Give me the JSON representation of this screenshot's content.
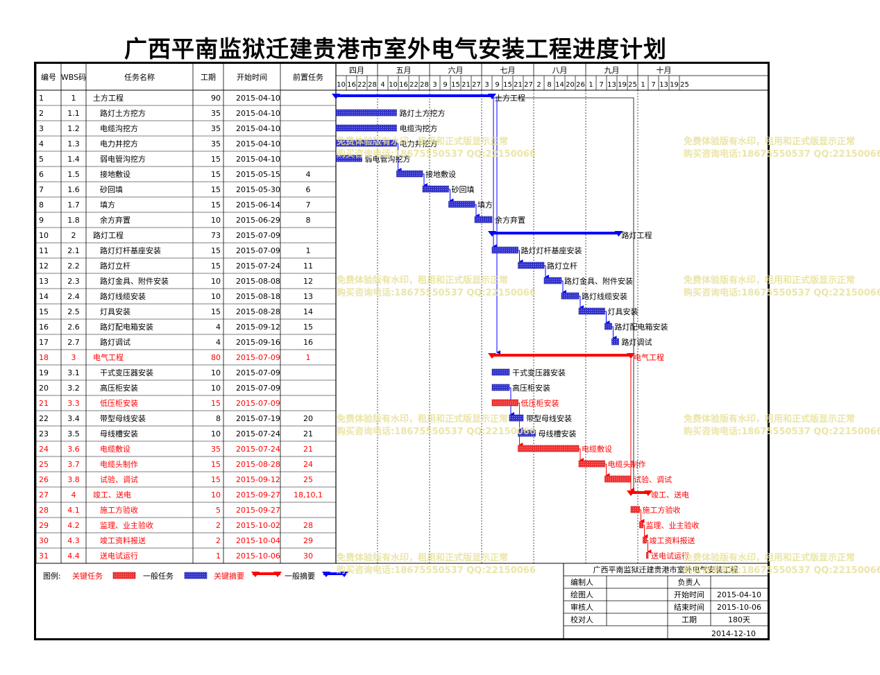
{
  "title": "广西平南监狱迁建贵港市室外电气安装工程进度计划",
  "colors": {
    "critical": "#ff0000",
    "normal": "#3333cc",
    "grid": "#000000",
    "link": "#0000ff"
  },
  "columns": {
    "id": "编号",
    "wbs": "WBS码",
    "name": "任务名称",
    "duration": "工期",
    "start": "开始时间",
    "pred": "前置任务"
  },
  "timeline": {
    "months": [
      {
        "label": "四月",
        "start": "2015-04-10",
        "end": "2015-05-04"
      },
      {
        "label": "五月",
        "start": "2015-05-04",
        "end": "2015-06-03"
      },
      {
        "label": "六月",
        "start": "2015-06-03",
        "end": "2015-07-03"
      },
      {
        "label": "七月",
        "start": "2015-07-03",
        "end": "2015-08-02"
      },
      {
        "label": "八月",
        "start": "2015-08-02",
        "end": "2015-09-01"
      },
      {
        "label": "九月",
        "start": "2015-09-01",
        "end": "2015-10-01"
      },
      {
        "label": "十月",
        "start": "2015-10-01",
        "end": "2015-10-31"
      }
    ],
    "ticks": [
      "10",
      "16",
      "22",
      "28",
      "4",
      "10",
      "16",
      "22",
      "28",
      "3",
      "9",
      "15",
      "21",
      "27",
      "3",
      "9",
      "15",
      "21",
      "27",
      "2",
      "8",
      "14",
      "20",
      "26",
      "1",
      "7",
      "13",
      "19",
      "25",
      "1",
      "7",
      "13",
      "19",
      "25"
    ],
    "tick_start": "2015-04-10",
    "tick_step_days": 6
  },
  "chart_data": {
    "type": "gantt",
    "tasks": [
      {
        "id": "1",
        "wbs": "1",
        "name": "土方工程",
        "duration": "90",
        "start": "2015-04-10",
        "pred": "",
        "level": 0,
        "summary": true,
        "critical": false
      },
      {
        "id": "2",
        "wbs": "1.1",
        "name": "路灯土方挖方",
        "duration": "35",
        "start": "2015-04-10",
        "pred": "",
        "level": 1,
        "summary": false,
        "critical": false
      },
      {
        "id": "3",
        "wbs": "1.2",
        "name": "电缆沟挖方",
        "duration": "35",
        "start": "2015-04-10",
        "pred": "",
        "level": 1,
        "summary": false,
        "critical": false
      },
      {
        "id": "4",
        "wbs": "1.3",
        "name": "电力井挖方",
        "duration": "35",
        "start": "2015-04-10",
        "pred": "",
        "level": 1,
        "summary": false,
        "critical": false
      },
      {
        "id": "5",
        "wbs": "1.4",
        "name": "弱电管沟挖方",
        "duration": "15",
        "start": "2015-04-10",
        "pred": "",
        "level": 1,
        "summary": false,
        "critical": false
      },
      {
        "id": "6",
        "wbs": "1.5",
        "name": "接地敷设",
        "duration": "15",
        "start": "2015-05-15",
        "pred": "4",
        "level": 1,
        "summary": false,
        "critical": false
      },
      {
        "id": "7",
        "wbs": "1.6",
        "name": "砂回填",
        "duration": "15",
        "start": "2015-05-30",
        "pred": "6",
        "level": 1,
        "summary": false,
        "critical": false
      },
      {
        "id": "8",
        "wbs": "1.7",
        "name": "填方",
        "duration": "15",
        "start": "2015-06-14",
        "pred": "7",
        "level": 1,
        "summary": false,
        "critical": false
      },
      {
        "id": "9",
        "wbs": "1.8",
        "name": "余方弃置",
        "duration": "10",
        "start": "2015-06-29",
        "pred": "8",
        "level": 1,
        "summary": false,
        "critical": false
      },
      {
        "id": "10",
        "wbs": "2",
        "name": "路灯工程",
        "duration": "73",
        "start": "2015-07-09",
        "pred": "",
        "level": 0,
        "summary": true,
        "critical": false
      },
      {
        "id": "11",
        "wbs": "2.1",
        "name": "路灯灯杆基座安装",
        "duration": "15",
        "start": "2015-07-09",
        "pred": "1",
        "level": 1,
        "summary": false,
        "critical": false
      },
      {
        "id": "12",
        "wbs": "2.2",
        "name": "路灯立杆",
        "duration": "15",
        "start": "2015-07-24",
        "pred": "11",
        "level": 1,
        "summary": false,
        "critical": false
      },
      {
        "id": "13",
        "wbs": "2.3",
        "name": "路灯金具、附件安装",
        "duration": "10",
        "start": "2015-08-08",
        "pred": "12",
        "level": 1,
        "summary": false,
        "critical": false
      },
      {
        "id": "14",
        "wbs": "2.4",
        "name": "路灯线缆安装",
        "duration": "10",
        "start": "2015-08-18",
        "pred": "13",
        "level": 1,
        "summary": false,
        "critical": false
      },
      {
        "id": "15",
        "wbs": "2.5",
        "name": "灯具安装",
        "duration": "15",
        "start": "2015-08-28",
        "pred": "14",
        "level": 1,
        "summary": false,
        "critical": false
      },
      {
        "id": "16",
        "wbs": "2.6",
        "name": "路灯配电箱安装",
        "duration": "4",
        "start": "2015-09-12",
        "pred": "15",
        "level": 1,
        "summary": false,
        "critical": false
      },
      {
        "id": "17",
        "wbs": "2.7",
        "name": "路灯调试",
        "duration": "4",
        "start": "2015-09-16",
        "pred": "16",
        "level": 1,
        "summary": false,
        "critical": false
      },
      {
        "id": "18",
        "wbs": "3",
        "name": "电气工程",
        "duration": "80",
        "start": "2015-07-09",
        "pred": "1",
        "level": 0,
        "summary": true,
        "critical": true
      },
      {
        "id": "19",
        "wbs": "3.1",
        "name": "干式变压器安装",
        "duration": "10",
        "start": "2015-07-09",
        "pred": "",
        "level": 1,
        "summary": false,
        "critical": false
      },
      {
        "id": "20",
        "wbs": "3.2",
        "name": "高压柜安装",
        "duration": "10",
        "start": "2015-07-09",
        "pred": "",
        "level": 1,
        "summary": false,
        "critical": false
      },
      {
        "id": "21",
        "wbs": "3.3",
        "name": "低压柜安装",
        "duration": "15",
        "start": "2015-07-09",
        "pred": "",
        "level": 1,
        "summary": false,
        "critical": true
      },
      {
        "id": "22",
        "wbs": "3.4",
        "name": "带型母线安装",
        "duration": "8",
        "start": "2015-07-19",
        "pred": "20",
        "level": 1,
        "summary": false,
        "critical": false
      },
      {
        "id": "23",
        "wbs": "3.5",
        "name": "母线槽安装",
        "duration": "10",
        "start": "2015-07-24",
        "pred": "21",
        "level": 1,
        "summary": false,
        "critical": false
      },
      {
        "id": "24",
        "wbs": "3.6",
        "name": "电缆敷设",
        "duration": "35",
        "start": "2015-07-24",
        "pred": "21",
        "level": 1,
        "summary": false,
        "critical": true
      },
      {
        "id": "25",
        "wbs": "3.7",
        "name": "电缆头制作",
        "duration": "15",
        "start": "2015-08-28",
        "pred": "24",
        "level": 1,
        "summary": false,
        "critical": true
      },
      {
        "id": "26",
        "wbs": "3.8",
        "name": "试验、调试",
        "duration": "15",
        "start": "2015-09-12",
        "pred": "25",
        "level": 1,
        "summary": false,
        "critical": true
      },
      {
        "id": "27",
        "wbs": "4",
        "name": "竣工、送电",
        "duration": "10",
        "start": "2015-09-27",
        "pred": "18,10,1",
        "level": 0,
        "summary": true,
        "critical": true
      },
      {
        "id": "28",
        "wbs": "4.1",
        "name": "施工方验收",
        "duration": "5",
        "start": "2015-09-27",
        "pred": "",
        "level": 1,
        "summary": false,
        "critical": true
      },
      {
        "id": "29",
        "wbs": "4.2",
        "name": "监理、业主验收",
        "duration": "2",
        "start": "2015-10-02",
        "pred": "28",
        "level": 1,
        "summary": false,
        "critical": true
      },
      {
        "id": "30",
        "wbs": "4.3",
        "name": "竣工资料报送",
        "duration": "2",
        "start": "2015-10-04",
        "pred": "29",
        "level": 1,
        "summary": false,
        "critical": true
      },
      {
        "id": "31",
        "wbs": "4.4",
        "name": "送电试运行",
        "duration": "1",
        "start": "2015-10-06",
        "pred": "30",
        "level": 1,
        "summary": false,
        "critical": true
      }
    ]
  },
  "legend": {
    "label": "图例:",
    "critical_task": "关键任务",
    "normal_task": "一般任务",
    "critical_summary": "关键摘要",
    "normal_summary": "一般摘要"
  },
  "info": {
    "project": "广西平南监狱迁建贵港市室外电气安装工程",
    "editor": "编制人",
    "owner": "负责人",
    "drawer": "绘图人",
    "start_label": "开始时间",
    "start_value": "2015-04-10",
    "reviewer": "审核人",
    "end_label": "结束时间",
    "end_value": "2015-10-06",
    "checker": "校对人",
    "duration_label": "工期",
    "duration_value": "180天",
    "date": "2014-12-10"
  },
  "watermark": {
    "line1": "免费体验版有水印，租用和正式版显示正常",
    "line2": "购买咨询电话:18675550537 QQ:22150066"
  }
}
